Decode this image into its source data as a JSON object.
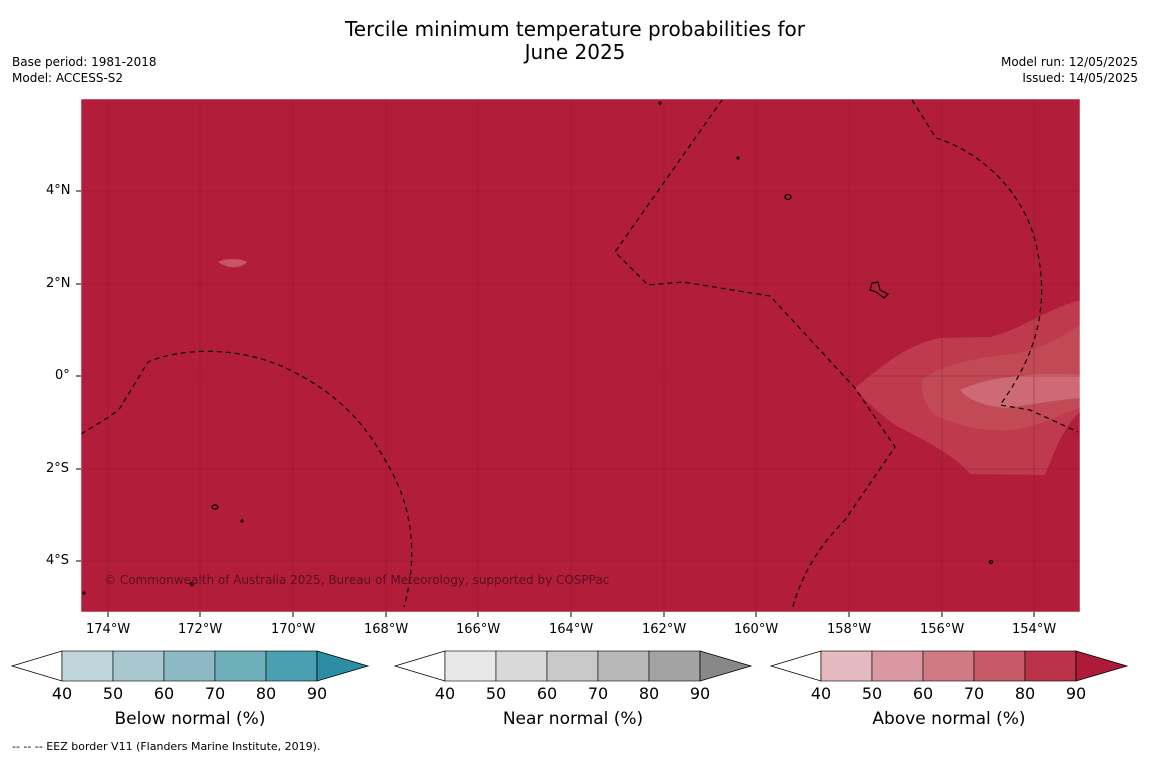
{
  "title_line1": "Tercile minimum temperature probabilities for",
  "title_line2": "June 2025",
  "base_period": "Base period: 1981-2018",
  "model": "Model: ACCESS-S2",
  "model_run": "Model run: 12/05/2025",
  "issued": "Issued: 14/05/2025",
  "copyright": "© Commonwealth of Australia 2025, Bureau of Meteorology, supported by COSPPac",
  "footer": "--  --  -- EEZ border V11 (Flanders Marine Institute, 2019).",
  "lon_labels": [
    "174°W",
    "172°W",
    "170°W",
    "168°W",
    "166°W",
    "164°W",
    "162°W",
    "160°W",
    "158°W",
    "156°W",
    "154°W"
  ],
  "lat_labels": [
    "4°N",
    "2°N",
    "0°",
    "2°S",
    "4°S"
  ],
  "colors": {
    "base": "#b21e3a",
    "level70": "#c3414f",
    "level60": "#cd6a72",
    "border": "#000000"
  },
  "colorbars": [
    {
      "label": "Below normal (%)",
      "ticks": [
        "40",
        "50",
        "60",
        "70",
        "80",
        "90"
      ],
      "colors": [
        "#bfd5dc",
        "#a7c8ce",
        "#8db9c5",
        "#6eafbc",
        "#4aa0b0",
        "#2b8ea3"
      ]
    },
    {
      "label": "Near normal (%)",
      "ticks": [
        "40",
        "50",
        "60",
        "70",
        "80",
        "90"
      ],
      "colors": [
        "#e8e8e8",
        "#d9d9d9",
        "#c9c9c9",
        "#b8b8b8",
        "#a3a3a3",
        "#888888"
      ]
    },
    {
      "label": "Above normal (%)",
      "ticks": [
        "40",
        "50",
        "60",
        "70",
        "80",
        "90"
      ],
      "colors": [
        "#e4b9c0",
        "#da99a2",
        "#d07a83",
        "#c65b67",
        "#ba3348",
        "#ad1a3a"
      ]
    }
  ]
}
